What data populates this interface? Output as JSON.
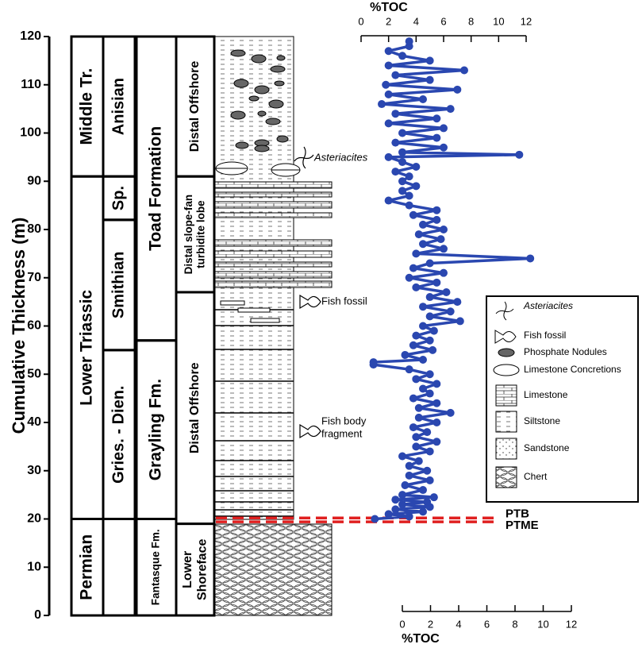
{
  "chart_data": {
    "type": "line",
    "ylabel": "Cumulative Thickness (m)",
    "ylim": [
      0,
      120
    ],
    "yticks": [
      0,
      10,
      20,
      30,
      40,
      50,
      60,
      70,
      80,
      90,
      100,
      110,
      120
    ],
    "xlabel": "%TOC",
    "xlim": [
      0,
      12
    ],
    "xticks": [
      0,
      2,
      4,
      6,
      8,
      10,
      12
    ],
    "x2label": "%TOC",
    "x2lim": [
      0,
      12
    ],
    "x2ticks": [
      0,
      2,
      4,
      6,
      8,
      10,
      12
    ],
    "series": [
      {
        "color": "#2a47b0",
        "x": [
          1.0,
          3.5,
          2.0,
          4.5,
          2.5,
          5.0,
          3.0,
          4.8,
          2.5,
          5.3,
          3.0,
          4.5,
          3.2,
          5.0,
          3.5,
          4.8,
          3.5,
          4.2,
          3.0,
          5.0,
          4.0,
          5.5,
          4.0,
          4.8,
          3.8,
          5.5,
          4.2,
          6.5,
          4.2,
          5.5,
          3.8,
          5.0,
          4.5,
          5.5,
          4.0,
          5.0,
          3.5,
          0.9,
          0.9,
          4.5,
          3.2,
          5.2,
          3.8,
          5.0,
          4.0,
          5.3,
          4.5,
          7.2,
          5.0,
          6.5,
          4.5,
          7.0,
          5.0,
          6.2,
          4.0,
          5.5,
          3.5,
          6.0,
          3.8,
          5.0,
          12.3,
          4.0,
          6.0,
          4.5,
          5.8,
          4.2,
          6.0,
          4.5,
          5.5,
          3.8,
          5.5,
          3.5,
          2.0,
          3.5,
          3.0,
          4.0,
          3.0,
          3.5,
          2.5,
          4.0,
          3.0,
          2.0,
          11.5,
          3.0,
          6.0,
          2.5,
          5.5,
          3.0,
          6.0,
          2.0,
          5.5,
          2.5,
          6.5,
          1.5,
          4.5,
          2.0,
          7.0,
          1.8,
          5.0,
          2.5,
          7.5,
          2.0,
          5.0,
          3.0,
          2.0,
          3.5,
          3.5
        ],
        "y": [
          20,
          20.5,
          21,
          21.5,
          22,
          22.5,
          23,
          23.5,
          24,
          24.5,
          25,
          26,
          27,
          28,
          29,
          30,
          31,
          32,
          33,
          34,
          35,
          36,
          37,
          38,
          39,
          40,
          41,
          42,
          43,
          44,
          45,
          46,
          47,
          48,
          49,
          50,
          51,
          52,
          52.5,
          53,
          54,
          55,
          56,
          57,
          58,
          59,
          60,
          61,
          62,
          63,
          64,
          65,
          66,
          67,
          68,
          69,
          70,
          71,
          72,
          73,
          74,
          75,
          76,
          77,
          78,
          79,
          80,
          81,
          82,
          83,
          84,
          85,
          86,
          87,
          88,
          89,
          90,
          91,
          92,
          93,
          94,
          95,
          95.5,
          96,
          97,
          98,
          99,
          100,
          101,
          102,
          103,
          104,
          105,
          106,
          107,
          108,
          109,
          110,
          111,
          112,
          113,
          114,
          115,
          116,
          117,
          118,
          119
        ]
      }
    ],
    "columns": [
      {
        "units": [
          {
            "label": "Permian",
            "from": 0,
            "to": 20
          },
          {
            "label": "Lower Triassic",
            "from": 20,
            "to": 91
          },
          {
            "label": "Middle Tr.",
            "from": 91,
            "to": 120
          }
        ]
      },
      {
        "units": [
          {
            "label": "Gries. - Dien.",
            "from": 20,
            "to": 55
          },
          {
            "label": "Smithian",
            "from": 55,
            "to": 82
          },
          {
            "label": "Sp.",
            "from": 82,
            "to": 91
          },
          {
            "label": "Anisian",
            "from": 91,
            "to": 120
          }
        ]
      },
      {
        "units": [
          {
            "label": "Fantasque Fm.",
            "from": 0,
            "to": 20
          },
          {
            "label": "Grayling Fm.",
            "from": 20,
            "to": 57
          },
          {
            "label": "Toad Formation",
            "from": 57,
            "to": 120
          }
        ]
      },
      {
        "units": [
          {
            "label": [
              "Lower",
              "Shoreface"
            ],
            "from": 0,
            "to": 19
          },
          {
            "label": [
              "Distal Offshore"
            ],
            "from": 19,
            "to": 67
          },
          {
            "label": [
              "Distal slope-fan",
              "turbidite lobe"
            ],
            "from": 67,
            "to": 91
          },
          {
            "label": [
              "Distal Offshore"
            ],
            "from": 91,
            "to": 120
          }
        ]
      }
    ],
    "boundaries": [
      {
        "label": "PTB",
        "value": 20.2
      },
      {
        "label": "PTME",
        "value": 19.4
      }
    ],
    "annotations": [
      [
        "Asteriacites"
      ],
      [
        "Fish fossil"
      ],
      [
        "Fish body",
        "fragment"
      ]
    ],
    "legend": {
      "items": [
        "Asteriacites",
        "Fish fossil",
        "Phosphate Nodules",
        "Limestone Concretions",
        "Limestone",
        "Siltstone",
        "Sandstone",
        "Chert"
      ]
    }
  }
}
